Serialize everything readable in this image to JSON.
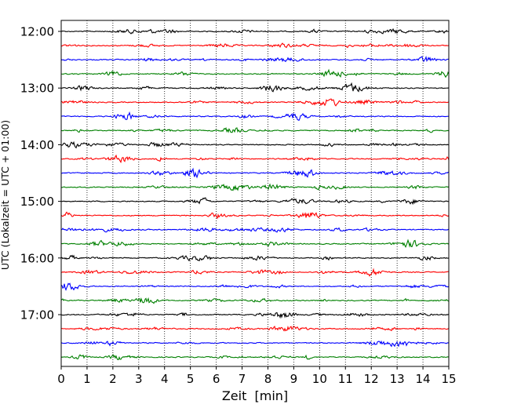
{
  "chart_data": {
    "type": "line",
    "chart_kind": "helicorder (seismogram drum plot)",
    "xlabel": "Zeit  [min]",
    "ylabel": "UTC (Lokalzeit = UTC + 01:00)",
    "xlim": [
      0,
      15
    ],
    "x_ticks": [
      "0",
      "1",
      "2",
      "3",
      "4",
      "5",
      "6",
      "7",
      "8",
      "9",
      "10",
      "11",
      "12",
      "13",
      "14",
      "15"
    ],
    "y_ticks": [
      "12:00",
      "13:00",
      "14:00",
      "15:00",
      "16:00",
      "17:00"
    ],
    "trace_start_times": [
      "12:00",
      "12:15",
      "12:30",
      "12:45",
      "13:00",
      "13:15",
      "13:30",
      "13:45",
      "14:00",
      "14:15",
      "14:30",
      "14:45",
      "15:00",
      "15:15",
      "15:30",
      "15:45",
      "16:00",
      "16:15",
      "16:30",
      "16:45",
      "17:00",
      "17:15",
      "17:30",
      "17:45"
    ],
    "trace_colors": [
      "#000000",
      "#ff0000",
      "#0000ff",
      "#008000"
    ],
    "vertical_grid": "dotted, every 1 min",
    "legend": "none"
  }
}
